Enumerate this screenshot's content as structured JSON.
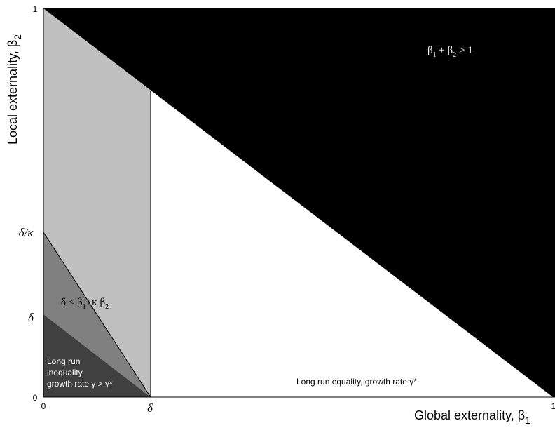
{
  "axes": {
    "x_label": "Global externality, β",
    "x_label_sub": "1",
    "y_label": "Local externality, β",
    "y_label_sub": "2",
    "x_ticks": [
      "0",
      "δ",
      "1"
    ],
    "y_ticks": [
      "0",
      "δ",
      "δ/κ",
      "1"
    ]
  },
  "regions": [
    {
      "name": "beta-sum-exceeds-one",
      "color": "#000000"
    },
    {
      "name": "long-run-equality",
      "color": "#ffffff"
    },
    {
      "name": "light-gray-band",
      "color": "#c0c0c0"
    },
    {
      "name": "mid-gray-band",
      "color": "#808080"
    },
    {
      "name": "long-run-inequality",
      "color": "#404040"
    }
  ],
  "labels": {
    "constraint": {
      "beta": "β",
      "sub1": "1",
      "plus": " + β",
      "sub2": "2",
      "rel": " > 1"
    },
    "mid_condition": {
      "delta": "δ < β",
      "sub1": "1",
      "mid": "+κ β",
      "sub2": "2"
    },
    "inequality": [
      "Long run",
      "inequality,",
      "growth rate γ > γ*"
    ],
    "equality": "Long run equality, growth rate γ*"
  }
}
